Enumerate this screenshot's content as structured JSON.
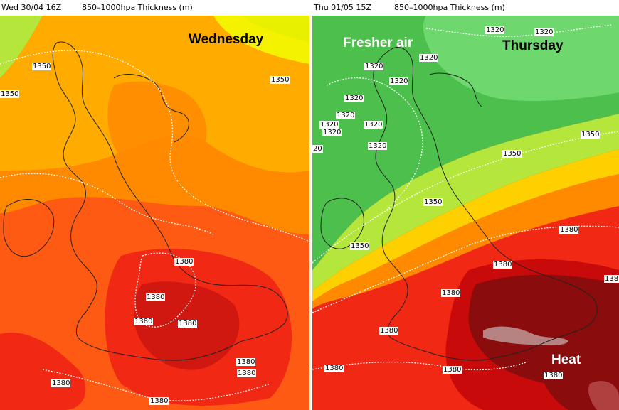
{
  "left_panel": {
    "date": "Wed 30/04 16Z",
    "field": "850–1000hpa Thickness (m)",
    "day_label": "Wednesday",
    "day_label_color": "#000000",
    "contour_labels": [
      "1350",
      "1350",
      "1350",
      "1380",
      "1380",
      "1380",
      "1380",
      "1380",
      "1380",
      "1380",
      "1380"
    ]
  },
  "right_panel": {
    "date": "Thu 01/05 15Z",
    "field": "850–1000hpa Thickness (m)",
    "day_label": "Thursday",
    "day_label_color": "#000000",
    "fresher_label": "Fresher air",
    "fresher_label_color": "#ffffff",
    "heat_label": "Heat",
    "heat_label_color": "#ffffff",
    "contour_labels": [
      "1320",
      "1320",
      "1320",
      "1320",
      "1320",
      "1320",
      "1320",
      "1320",
      "1320",
      "1320",
      "20",
      "1320",
      "1350",
      "1350",
      "1350",
      "1350",
      "1380",
      "1380",
      "1380",
      "1380",
      "1380",
      "1380",
      "1380",
      "138"
    ]
  },
  "colors": {
    "yellow": "#f5f200",
    "gold": "#ffd000",
    "amber": "#ffab00",
    "orange": "#ff8a00",
    "red_orange": "#ff5a14",
    "red": "#f02814",
    "deep_red": "#c80a0a",
    "maroon": "#8a0c0c",
    "light_green": "#6ed86e",
    "green": "#4cbf4c",
    "lime": "#b4e63c"
  }
}
